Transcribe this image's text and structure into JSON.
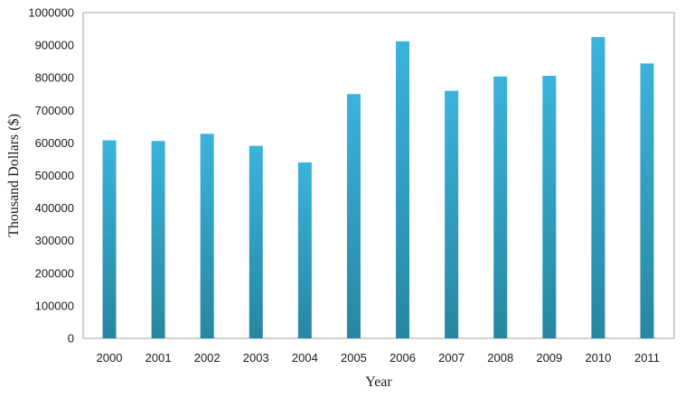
{
  "chart_data": {
    "type": "bar",
    "title": "",
    "xlabel": "Year",
    "ylabel": "Thousand Dollars ($)",
    "categories": [
      "2000",
      "2001",
      "2002",
      "2003",
      "2004",
      "2005",
      "2006",
      "2007",
      "2008",
      "2009",
      "2010",
      "2011"
    ],
    "values": [
      608000,
      606000,
      628000,
      591000,
      540000,
      750000,
      912000,
      760000,
      804000,
      806000,
      925000,
      844000
    ],
    "ylim": [
      0,
      1000000
    ],
    "yticks": [
      "0",
      "100000",
      "200000",
      "300000",
      "400000",
      "500000",
      "600000",
      "700000",
      "800000",
      "900000",
      "1000000"
    ],
    "grid": false,
    "legend": "none",
    "bar_color_top": "#3bb3dc",
    "bar_color_bottom": "#2787a0",
    "frame_color": "#a6a6a6"
  }
}
